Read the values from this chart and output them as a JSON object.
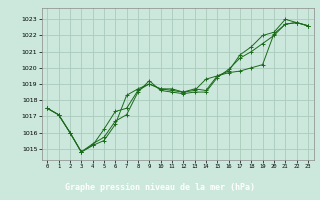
{
  "title": "Graphe pression niveau de la mer (hPa)",
  "bg_color": "#cce8dc",
  "grid_color": "#aaccbb",
  "line_color": "#1a6b1a",
  "xlim": [
    -0.5,
    23.5
  ],
  "ylim": [
    1014.3,
    1023.7
  ],
  "yticks": [
    1015,
    1016,
    1017,
    1018,
    1019,
    1020,
    1021,
    1022,
    1023
  ],
  "xticks": [
    0,
    1,
    2,
    3,
    4,
    5,
    6,
    7,
    8,
    9,
    10,
    11,
    12,
    13,
    14,
    15,
    16,
    17,
    18,
    19,
    20,
    21,
    22,
    23
  ],
  "label_bg": "#1a6b1a",
  "label_fg": "#ffffff",
  "series": [
    [
      1017.5,
      1017.1,
      1016.0,
      1014.8,
      1015.2,
      1015.5,
      1016.5,
      1018.3,
      1018.7,
      1019.0,
      1018.7,
      1018.6,
      1018.5,
      1018.6,
      1019.3,
      1019.5,
      1019.7,
      1019.8,
      1020.0,
      1020.2,
      1022.1,
      1022.7,
      1022.8,
      1022.6
    ],
    [
      1017.5,
      1017.1,
      1016.0,
      1014.8,
      1015.3,
      1015.7,
      1016.7,
      1017.1,
      1018.5,
      1019.2,
      1018.6,
      1018.5,
      1018.4,
      1018.5,
      1018.5,
      1019.4,
      1019.9,
      1020.6,
      1021.0,
      1021.5,
      1022.0,
      1022.7,
      1022.8,
      1022.6
    ],
    [
      1017.5,
      1017.1,
      1016.0,
      1014.8,
      1015.2,
      1016.2,
      1017.3,
      1017.5,
      1018.6,
      1019.0,
      1018.7,
      1018.7,
      1018.5,
      1018.7,
      1018.6,
      1019.5,
      1019.8,
      1020.8,
      1021.3,
      1022.0,
      1022.2,
      1023.0,
      1022.8,
      1022.6
    ]
  ]
}
